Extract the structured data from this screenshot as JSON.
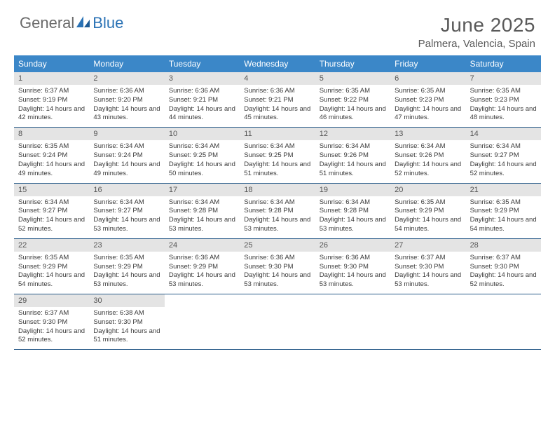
{
  "colors": {
    "header_bar": "#3b87c8",
    "day_num_bg": "#e4e4e4",
    "row_border": "#2a5c8a",
    "logo_gray": "#6a6a6a",
    "logo_blue": "#2a72b5",
    "text": "#3a3a3a"
  },
  "logo": {
    "part1": "General",
    "part2": "Blue"
  },
  "title": "June 2025",
  "location": "Palmera, Valencia, Spain",
  "weekdays": [
    "Sunday",
    "Monday",
    "Tuesday",
    "Wednesday",
    "Thursday",
    "Friday",
    "Saturday"
  ],
  "weeks": [
    [
      {
        "num": "1",
        "sunrise": "Sunrise: 6:37 AM",
        "sunset": "Sunset: 9:19 PM",
        "daylight": "Daylight: 14 hours and 42 minutes."
      },
      {
        "num": "2",
        "sunrise": "Sunrise: 6:36 AM",
        "sunset": "Sunset: 9:20 PM",
        "daylight": "Daylight: 14 hours and 43 minutes."
      },
      {
        "num": "3",
        "sunrise": "Sunrise: 6:36 AM",
        "sunset": "Sunset: 9:21 PM",
        "daylight": "Daylight: 14 hours and 44 minutes."
      },
      {
        "num": "4",
        "sunrise": "Sunrise: 6:36 AM",
        "sunset": "Sunset: 9:21 PM",
        "daylight": "Daylight: 14 hours and 45 minutes."
      },
      {
        "num": "5",
        "sunrise": "Sunrise: 6:35 AM",
        "sunset": "Sunset: 9:22 PM",
        "daylight": "Daylight: 14 hours and 46 minutes."
      },
      {
        "num": "6",
        "sunrise": "Sunrise: 6:35 AM",
        "sunset": "Sunset: 9:23 PM",
        "daylight": "Daylight: 14 hours and 47 minutes."
      },
      {
        "num": "7",
        "sunrise": "Sunrise: 6:35 AM",
        "sunset": "Sunset: 9:23 PM",
        "daylight": "Daylight: 14 hours and 48 minutes."
      }
    ],
    [
      {
        "num": "8",
        "sunrise": "Sunrise: 6:35 AM",
        "sunset": "Sunset: 9:24 PM",
        "daylight": "Daylight: 14 hours and 49 minutes."
      },
      {
        "num": "9",
        "sunrise": "Sunrise: 6:34 AM",
        "sunset": "Sunset: 9:24 PM",
        "daylight": "Daylight: 14 hours and 49 minutes."
      },
      {
        "num": "10",
        "sunrise": "Sunrise: 6:34 AM",
        "sunset": "Sunset: 9:25 PM",
        "daylight": "Daylight: 14 hours and 50 minutes."
      },
      {
        "num": "11",
        "sunrise": "Sunrise: 6:34 AM",
        "sunset": "Sunset: 9:25 PM",
        "daylight": "Daylight: 14 hours and 51 minutes."
      },
      {
        "num": "12",
        "sunrise": "Sunrise: 6:34 AM",
        "sunset": "Sunset: 9:26 PM",
        "daylight": "Daylight: 14 hours and 51 minutes."
      },
      {
        "num": "13",
        "sunrise": "Sunrise: 6:34 AM",
        "sunset": "Sunset: 9:26 PM",
        "daylight": "Daylight: 14 hours and 52 minutes."
      },
      {
        "num": "14",
        "sunrise": "Sunrise: 6:34 AM",
        "sunset": "Sunset: 9:27 PM",
        "daylight": "Daylight: 14 hours and 52 minutes."
      }
    ],
    [
      {
        "num": "15",
        "sunrise": "Sunrise: 6:34 AM",
        "sunset": "Sunset: 9:27 PM",
        "daylight": "Daylight: 14 hours and 52 minutes."
      },
      {
        "num": "16",
        "sunrise": "Sunrise: 6:34 AM",
        "sunset": "Sunset: 9:27 PM",
        "daylight": "Daylight: 14 hours and 53 minutes."
      },
      {
        "num": "17",
        "sunrise": "Sunrise: 6:34 AM",
        "sunset": "Sunset: 9:28 PM",
        "daylight": "Daylight: 14 hours and 53 minutes."
      },
      {
        "num": "18",
        "sunrise": "Sunrise: 6:34 AM",
        "sunset": "Sunset: 9:28 PM",
        "daylight": "Daylight: 14 hours and 53 minutes."
      },
      {
        "num": "19",
        "sunrise": "Sunrise: 6:34 AM",
        "sunset": "Sunset: 9:28 PM",
        "daylight": "Daylight: 14 hours and 53 minutes."
      },
      {
        "num": "20",
        "sunrise": "Sunrise: 6:35 AM",
        "sunset": "Sunset: 9:29 PM",
        "daylight": "Daylight: 14 hours and 54 minutes."
      },
      {
        "num": "21",
        "sunrise": "Sunrise: 6:35 AM",
        "sunset": "Sunset: 9:29 PM",
        "daylight": "Daylight: 14 hours and 54 minutes."
      }
    ],
    [
      {
        "num": "22",
        "sunrise": "Sunrise: 6:35 AM",
        "sunset": "Sunset: 9:29 PM",
        "daylight": "Daylight: 14 hours and 54 minutes."
      },
      {
        "num": "23",
        "sunrise": "Sunrise: 6:35 AM",
        "sunset": "Sunset: 9:29 PM",
        "daylight": "Daylight: 14 hours and 53 minutes."
      },
      {
        "num": "24",
        "sunrise": "Sunrise: 6:36 AM",
        "sunset": "Sunset: 9:29 PM",
        "daylight": "Daylight: 14 hours and 53 minutes."
      },
      {
        "num": "25",
        "sunrise": "Sunrise: 6:36 AM",
        "sunset": "Sunset: 9:30 PM",
        "daylight": "Daylight: 14 hours and 53 minutes."
      },
      {
        "num": "26",
        "sunrise": "Sunrise: 6:36 AM",
        "sunset": "Sunset: 9:30 PM",
        "daylight": "Daylight: 14 hours and 53 minutes."
      },
      {
        "num": "27",
        "sunrise": "Sunrise: 6:37 AM",
        "sunset": "Sunset: 9:30 PM",
        "daylight": "Daylight: 14 hours and 53 minutes."
      },
      {
        "num": "28",
        "sunrise": "Sunrise: 6:37 AM",
        "sunset": "Sunset: 9:30 PM",
        "daylight": "Daylight: 14 hours and 52 minutes."
      }
    ],
    [
      {
        "num": "29",
        "sunrise": "Sunrise: 6:37 AM",
        "sunset": "Sunset: 9:30 PM",
        "daylight": "Daylight: 14 hours and 52 minutes."
      },
      {
        "num": "30",
        "sunrise": "Sunrise: 6:38 AM",
        "sunset": "Sunset: 9:30 PM",
        "daylight": "Daylight: 14 hours and 51 minutes."
      },
      null,
      null,
      null,
      null,
      null
    ]
  ]
}
